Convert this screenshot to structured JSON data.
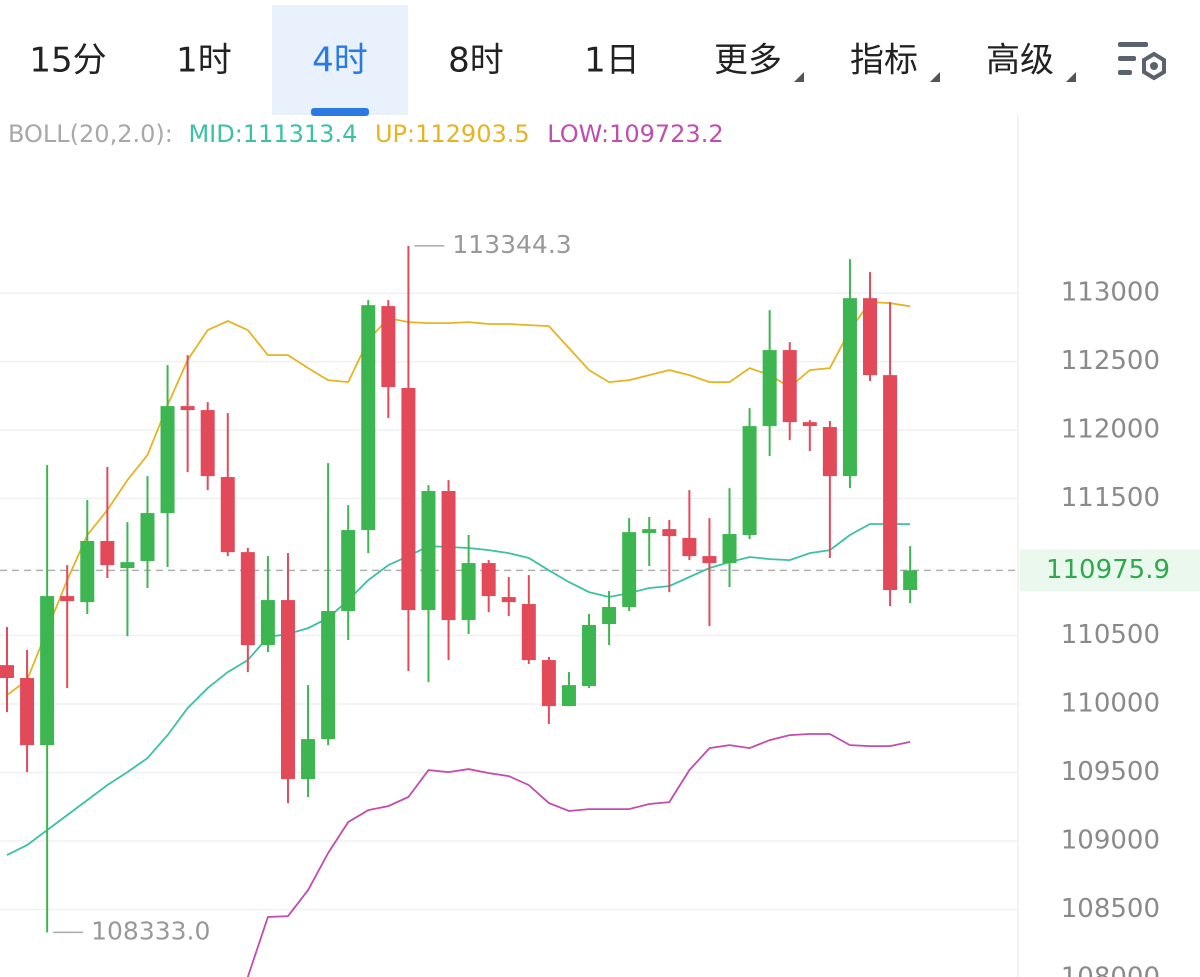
{
  "tabs": [
    {
      "label": "15分"
    },
    {
      "label": "1时"
    },
    {
      "label": "4时",
      "selected": true
    },
    {
      "label": "8时"
    },
    {
      "label": "1日"
    },
    {
      "label": "更多",
      "dropdown": true
    },
    {
      "label": "指标",
      "dropdown": true
    },
    {
      "label": "高级",
      "dropdown": true
    }
  ],
  "chart_data": {
    "type": "candlestick",
    "indicator_label": "BOLL(20,2.0):",
    "open": [
      110284,
      110190,
      109700,
      110788,
      110744,
      111190,
      110993,
      111044,
      111394,
      112175,
      112146,
      111657,
      111109,
      110430,
      110759,
      109452,
      109744,
      110679,
      111270,
      112905,
      112307,
      110686,
      111555,
      110613,
      111029,
      110781,
      110730,
      110321,
      109985,
      110131,
      110584,
      110708,
      111248,
      111277,
      111212,
      111080,
      111029,
      111234,
      112029,
      112584,
      112058,
      112022,
      111664,
      112963,
      112401,
      110832
    ],
    "high": [
      110562,
      110394,
      111744,
      111014,
      111489,
      111730,
      111328,
      111664,
      112474,
      112547,
      112204,
      112124,
      111139,
      111080,
      111102,
      110138,
      111759,
      111452,
      112949,
      112949,
      113344.3,
      111598,
      111635,
      111234,
      111051,
      110927,
      110941,
      110343,
      110233,
      110657,
      110825,
      111357,
      111365,
      111343,
      111562,
      111357,
      111576,
      112160,
      112876,
      112642,
      112073,
      112066,
      113248,
      113153,
      112934,
      111153
    ],
    "low": [
      109941,
      109503,
      108333,
      110116,
      110657,
      110920,
      110496,
      110847,
      111000,
      111693,
      111562,
      111080,
      110233,
      110379,
      109277,
      109321,
      109700,
      110467,
      111102,
      112087,
      110241,
      110160,
      110321,
      110511,
      110672,
      110643,
      110292,
      109854,
      109985,
      110116,
      110430,
      110679,
      111007,
      110817,
      111051,
      110569,
      110854,
      111204,
      111810,
      111927,
      111847,
      111066,
      111576,
      112358,
      110715,
      110737
    ],
    "close": [
      110190,
      109700,
      110788,
      110752,
      111190,
      111014,
      111036,
      111394,
      112175,
      112146,
      111664,
      111109,
      110430,
      110759,
      109452,
      109744,
      110679,
      111270,
      112912,
      112314,
      110686,
      111555,
      110613,
      111029,
      110788,
      110744,
      110321,
      109985,
      110138,
      110577,
      110708,
      111255,
      111277,
      111226,
      111080,
      111029,
      111241,
      112029,
      112584,
      112058,
      112029,
      111664,
      112963,
      112401,
      110832,
      110975.9
    ],
    "up_color": "#3db551",
    "down_color": "#e24a5a",
    "series": [
      {
        "name": "MID",
        "legend": "MID:111313.4",
        "color": "#3cc1a5",
        "values": [
          108897,
          108970,
          109080,
          109189,
          109299,
          109408,
          109503,
          109605,
          109773,
          109970,
          110116,
          110233,
          110321,
          110489,
          110511,
          110554,
          110627,
          110759,
          110905,
          111014,
          111080,
          111153,
          111146,
          111139,
          111124,
          111102,
          111066,
          110976,
          110890,
          110817,
          110781,
          110810,
          110847,
          110861,
          110927,
          110993,
          111036,
          111073,
          111058,
          111051,
          111102,
          111124,
          111234,
          111314,
          111314,
          111313.4
        ]
      },
      {
        "name": "UP",
        "legend": "UP:112903.5",
        "color": "#e6b422",
        "values": [
          110065,
          110175,
          110540,
          110905,
          111233,
          111416,
          111635,
          111817,
          112182,
          112511,
          112730,
          112796,
          112730,
          112547,
          112547,
          112452,
          112365,
          112350,
          112657,
          112817,
          112788,
          112781,
          112781,
          112788,
          112774,
          112774,
          112766,
          112759,
          112598,
          112438,
          112350,
          112365,
          112401,
          112438,
          112401,
          112350,
          112350,
          112452,
          112401,
          112314,
          112438,
          112452,
          112730,
          112934,
          112927,
          112903.5
        ]
      },
      {
        "name": "LOW",
        "legend": "LOW:109723.2",
        "color": "#c24dac",
        "values": [
          null,
          null,
          null,
          null,
          null,
          null,
          null,
          null,
          null,
          null,
          null,
          null,
          108007,
          108445,
          108452,
          108642,
          108912,
          109138,
          109226,
          109255,
          109321,
          109518,
          109503,
          109525,
          109496,
          109474,
          109408,
          109277,
          109219,
          109233,
          109233,
          109233,
          109270,
          109284,
          109518,
          109678,
          109700,
          109678,
          109737,
          109773,
          109781,
          109781,
          109700,
          109693,
          109693,
          109723.2
        ]
      }
    ],
    "max_label": "113344.3",
    "min_label": "108333.0",
    "last_price": 110975.9,
    "ylim": [
      108000,
      114300
    ],
    "yticks": [
      113000,
      112500,
      112000,
      111500,
      110500,
      110000,
      109500,
      109000,
      108500,
      108000
    ],
    "grid": true
  }
}
